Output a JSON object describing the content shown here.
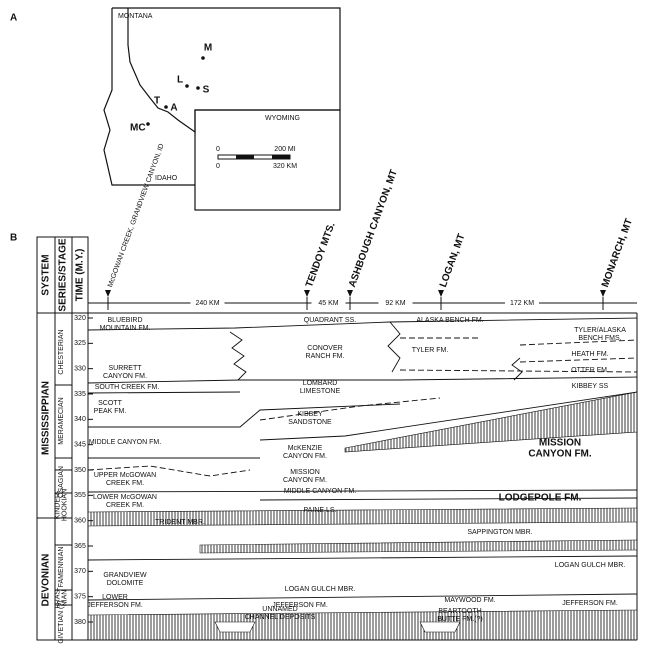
{
  "panel_a": {
    "label": "A",
    "states": [
      "MONTANA",
      "WYOMING",
      "IDAHO"
    ],
    "sites": [
      "M",
      "L",
      "S",
      "T",
      "A",
      "MC"
    ],
    "scale": {
      "mi_zero": "0",
      "mi": "200 MI",
      "km_zero": "0",
      "km": "320 KM"
    }
  },
  "panel_b": {
    "label": "B",
    "headers": [
      "SYSTEM",
      "SERIES/STAGE",
      "TIME (M.Y.)"
    ],
    "stations": [
      "McGOWAN CREEK, GRANDVIEW CANYON, ID",
      "TENDOY MTS.",
      "ASHBOUGH CANYON, MT",
      "LOGAN, MT",
      "MONARCH, MT"
    ],
    "distances": [
      "240 KM",
      "45 KM",
      "92 KM",
      "172 KM"
    ],
    "time_ticks": [
      320,
      325,
      330,
      335,
      340,
      345,
      350,
      355,
      360,
      365,
      370,
      375,
      380
    ],
    "systems": [
      "MISSISSIPPIAN",
      "DEVONIAN"
    ],
    "series": [
      [
        "CHESTERIAN"
      ],
      [
        "MERAMECIAN"
      ],
      [
        "OSAGIAN"
      ],
      [
        "KINDER-",
        "HOOKIAN"
      ],
      [
        "FAMENNIAN"
      ],
      [
        "FRAS-",
        "NIAN"
      ],
      [
        "GIVETIAN (?)"
      ]
    ],
    "formations": [
      [
        "BLUEBIRD",
        "MOUNTAIN FM."
      ],
      [
        "SURRETT",
        "CANYON FM."
      ],
      [
        "SOUTH CREEK FM."
      ],
      [
        "SCOTT",
        "PEAK FM."
      ],
      [
        "MIDDLE CANYON FM."
      ],
      [
        "UPPER McGOWAN",
        "CREEK FM."
      ],
      [
        "LOWER McGOWAN",
        "CREEK FM."
      ],
      [
        "GRANDVIEW",
        "DOLOMITE"
      ],
      [
        "LOWER",
        "JEFFERSON FM."
      ],
      [
        "TRIDENT MBR."
      ],
      [
        "QUADRANT SS."
      ],
      [
        "CONOVER",
        "RANCH FM."
      ],
      [
        "LOMBARD",
        "LIMESTONE"
      ],
      [
        "KIBBEY",
        "SANDSTONE"
      ],
      [
        "McKENZIE",
        "CANYON FM."
      ],
      [
        "MISSION",
        "CANYON FM."
      ],
      [
        "MIDDLE CANYON FM."
      ],
      [
        "PAINE LS."
      ],
      [
        "LOGAN GULCH MBR."
      ],
      [
        "JEFFERSON FM."
      ],
      [
        "UNNAMED",
        "CHANNEL DEPOSITS"
      ],
      [
        "ALASKA BENCH FM."
      ],
      [
        "TYLER FM."
      ],
      [
        "TYLER/ALASKA",
        "BENCH FMS."
      ],
      [
        "HEATH FM."
      ],
      [
        "OTTER FM."
      ],
      [
        "KIBBEY SS"
      ],
      [
        "MISSION",
        "CANYON FM."
      ],
      [
        "LODGEPOLE FM."
      ],
      [
        "SAPPINGTON MBR."
      ],
      [
        "LOGAN GULCH MBR."
      ],
      [
        "MAYWOOD FM."
      ],
      [
        "JEFFERSON FM."
      ],
      [
        "BEARTOOTH",
        "BUTTE FM.(?)"
      ]
    ]
  }
}
